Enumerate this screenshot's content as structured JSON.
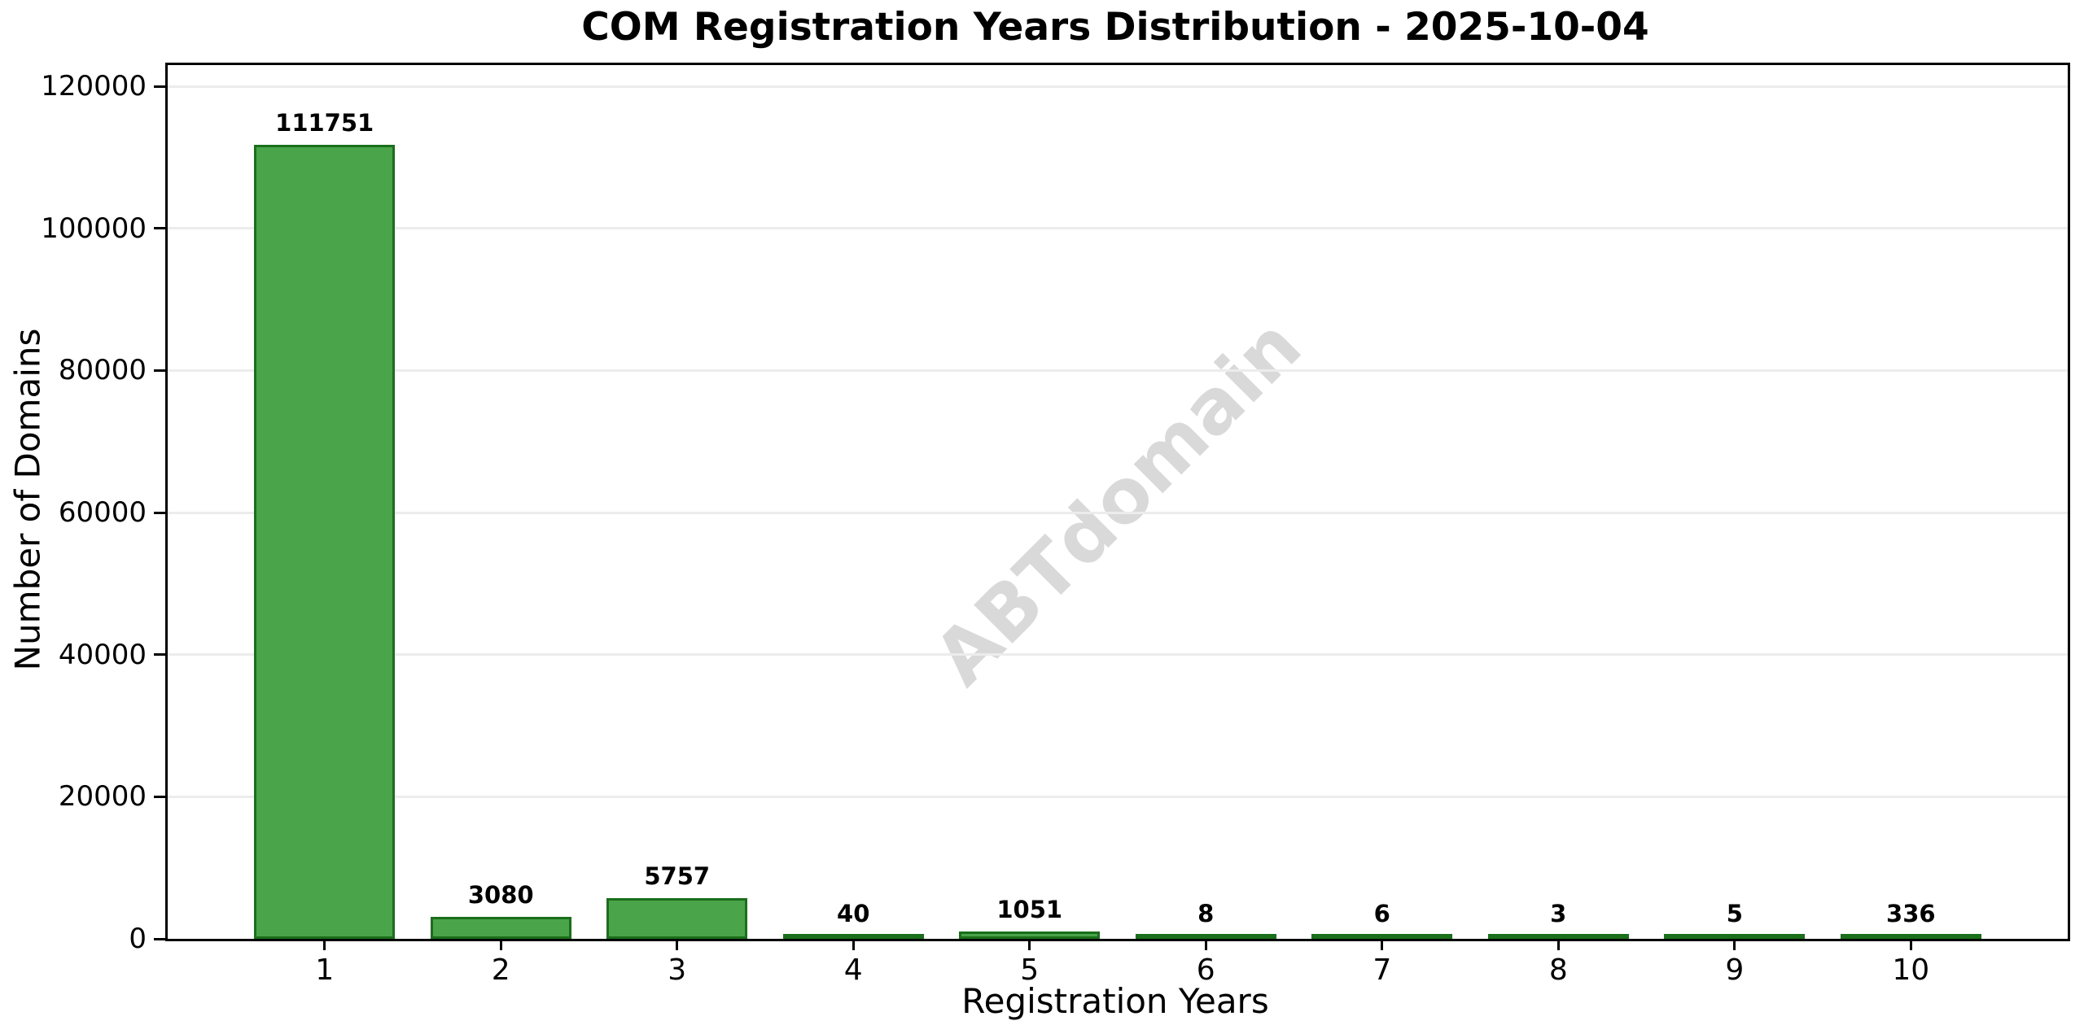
{
  "figure": {
    "watermark": "ABTdomain"
  },
  "chart_data": {
    "type": "bar",
    "title": "COM Registration Years Distribution - 2025-10-04",
    "categories": [
      "1",
      "2",
      "3",
      "4",
      "5",
      "6",
      "7",
      "8",
      "9",
      "10"
    ],
    "values": [
      111751,
      3080,
      5757,
      40,
      1051,
      8,
      6,
      3,
      5,
      336
    ],
    "value_labels": [
      "111751",
      "3080",
      "5757",
      "40",
      "1051",
      "8",
      "6",
      "3",
      "5",
      "336"
    ],
    "xlabel": "Registration Years",
    "ylabel": "Number of Domains",
    "yticks": [
      0,
      20000,
      40000,
      60000,
      80000,
      100000,
      120000
    ],
    "ytick_labels": [
      "0",
      "20000",
      "40000",
      "60000",
      "80000",
      "100000",
      "120000"
    ],
    "ylim": [
      0,
      123000
    ],
    "xlim": [
      0.11,
      10.89
    ],
    "bar_width": 0.8,
    "grid": "horizontal",
    "legend": "none",
    "watermark": "ABTdomain",
    "colors": {
      "bar_fill": "#4aa44a",
      "bar_edge": "#1a701a",
      "grid": "#ececec",
      "spine": "#000000",
      "text": "#000000",
      "watermark": "#d9d9d9",
      "background": "#ffffff"
    }
  }
}
